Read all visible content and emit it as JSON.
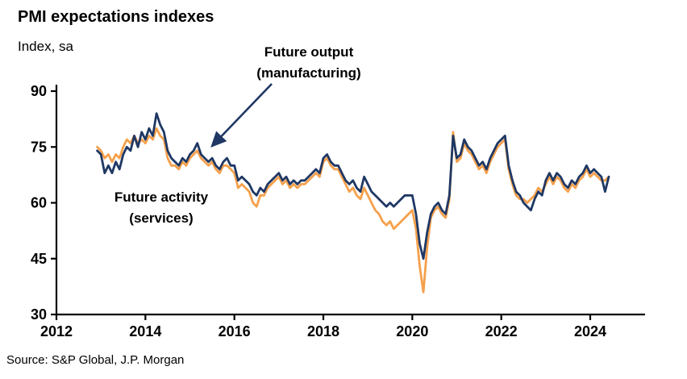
{
  "header": {
    "title": "PMI expectations indexes",
    "axis_unit_label": "Index, sa"
  },
  "footer": {
    "source": "Source: S&P Global, J.P. Morgan"
  },
  "colors": {
    "manufacturing": "#1F3864",
    "services": "#F5A04C",
    "axis": "#000000",
    "arrow": "#1F3864"
  },
  "chart_data": {
    "type": "line",
    "title": "PMI expectations indexes",
    "ylabel": "Index, sa",
    "xlabel": "",
    "ylim": [
      30,
      90
    ],
    "yticks": [
      30,
      45,
      60,
      75,
      90
    ],
    "xticks": [
      2012,
      2014,
      2016,
      2018,
      2020,
      2022,
      2024
    ],
    "xlim": [
      2012,
      2025.2
    ],
    "grid": false,
    "legend_position": "annotations-on-chart",
    "x_start_year": 2012.9167,
    "x_step_years": 0.0833333,
    "annotations": {
      "manufacturing": {
        "line1": "Future output",
        "line2": "(manufacturing)",
        "arrow_points_to": "navy line near 2015, value ~72"
      },
      "services": {
        "line1": "Future activity",
        "line2": "(services)"
      }
    },
    "source": "Source: S&P Global, J.P. Morgan",
    "series": [
      {
        "name": "Future activity (services)",
        "color": "#F5A04C",
        "values": [
          75,
          74,
          72,
          73,
          71,
          73,
          72,
          75,
          77,
          76,
          78,
          76,
          77,
          76,
          78,
          77,
          80,
          78,
          77,
          72,
          70,
          70,
          69,
          71,
          70,
          72,
          73,
          74,
          72,
          71,
          70,
          71,
          69,
          68,
          70,
          70,
          69,
          68,
          64,
          65,
          64,
          63,
          60,
          59,
          62,
          62,
          64,
          65,
          66,
          67,
          65,
          66,
          64,
          65,
          64,
          65,
          65,
          66,
          67,
          68,
          67,
          71,
          72,
          70,
          69,
          69,
          67,
          65,
          63,
          64,
          62,
          61,
          64,
          62,
          60,
          58,
          57,
          55,
          54,
          55,
          53,
          54,
          55,
          56,
          57,
          58,
          53,
          43,
          36,
          48,
          56,
          58,
          59,
          57,
          56,
          61,
          79,
          71,
          72,
          76,
          74,
          73,
          71,
          69,
          70,
          68,
          71,
          73,
          75,
          76,
          77,
          69,
          65,
          62,
          61,
          61,
          60,
          61,
          62,
          64,
          63,
          65,
          67,
          65,
          67,
          66,
          64,
          63,
          65,
          64,
          66,
          67,
          69,
          67,
          68,
          67,
          66,
          66,
          67
        ]
      },
      {
        "name": "Future output (manufacturing)",
        "color": "#1F3864",
        "values": [
          74,
          73,
          68,
          70,
          68,
          71,
          69,
          73,
          75,
          74,
          78,
          75,
          79,
          77,
          80,
          78,
          84,
          81,
          79,
          74,
          72,
          71,
          70,
          72,
          71,
          73,
          74,
          76,
          73,
          72,
          71,
          72,
          70,
          69,
          71,
          72,
          70,
          70,
          66,
          67,
          66,
          65,
          63,
          62,
          64,
          63,
          65,
          66,
          67,
          68,
          66,
          67,
          65,
          66,
          65,
          66,
          66,
          67,
          68,
          69,
          68,
          72,
          73,
          71,
          70,
          70,
          68,
          66,
          65,
          66,
          64,
          63,
          67,
          65,
          63,
          62,
          61,
          60,
          59,
          60,
          59,
          60,
          61,
          62,
          62,
          62,
          57,
          49,
          45,
          52,
          57,
          59,
          60,
          58,
          57,
          62,
          78,
          72,
          73,
          77,
          75,
          74,
          72,
          70,
          71,
          69,
          72,
          74,
          76,
          77,
          78,
          70,
          66,
          63,
          62,
          60,
          59,
          58,
          61,
          63,
          62,
          66,
          68,
          66,
          68,
          67,
          65,
          64,
          66,
          65,
          67,
          68,
          70,
          68,
          69,
          68,
          67,
          63,
          67
        ]
      }
    ]
  }
}
